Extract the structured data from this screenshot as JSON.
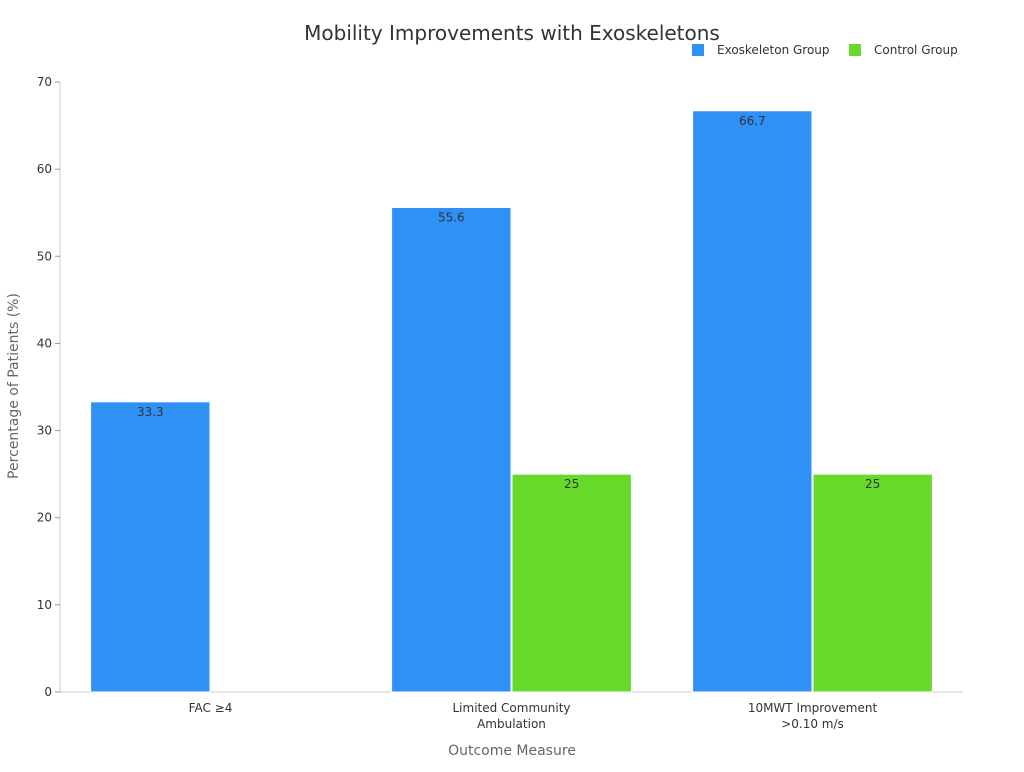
{
  "chart_data": {
    "type": "bar",
    "title": "Mobility Improvements with Exoskeletons",
    "xlabel": "Outcome Measure",
    "ylabel": "Percentage of Patients (%)",
    "ylim": [
      0,
      70
    ],
    "yticks": [
      0,
      10,
      20,
      30,
      40,
      50,
      60,
      70
    ],
    "categories": [
      [
        "FAC ≥4"
      ],
      [
        "Limited Community",
        "Ambulation"
      ],
      [
        "10MWT Improvement",
        ">0.10 m/s"
      ]
    ],
    "series": [
      {
        "name": "Exoskeleton Group",
        "color": "#2f91f5",
        "values": [
          33.3,
          55.6,
          66.7
        ],
        "labels": [
          "33.3",
          "55.6",
          "66.7"
        ]
      },
      {
        "name": "Control Group",
        "color": "#66d92a",
        "values": [
          0,
          25,
          25
        ],
        "labels": [
          "",
          "25",
          "25"
        ]
      }
    ],
    "legend_position": "top-right",
    "grid": false
  }
}
